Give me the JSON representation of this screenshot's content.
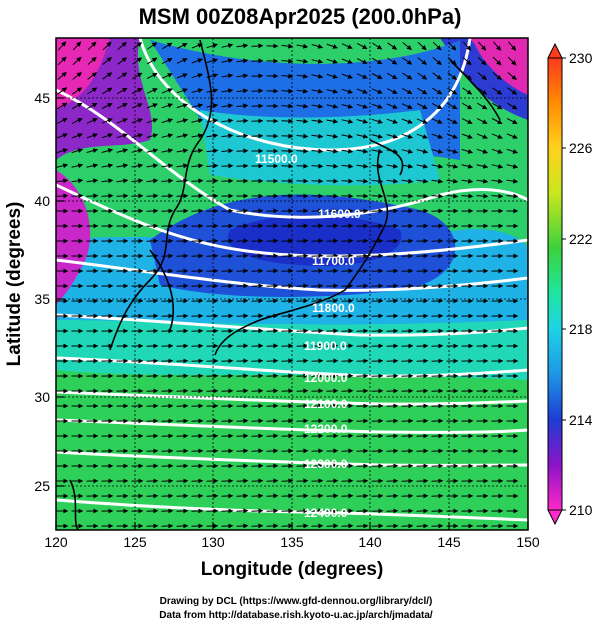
{
  "title": "MSM 00Z08Apr2025 (200.0hPa)",
  "xlabel": "Longitude (degrees)",
  "ylabel": "Latitude  (degrees)",
  "x_ticks": [
    "120",
    "125",
    "130",
    "135",
    "140",
    "145",
    "150"
  ],
  "y_ticks": [
    "25",
    "30",
    "35",
    "40",
    "45"
  ],
  "colorbar": {
    "ticks": [
      "230",
      "226",
      "222",
      "218",
      "214",
      "210"
    ],
    "min": 210,
    "max": 230
  },
  "contour_labels": [
    "11500.0",
    "11600.0",
    "11700.0",
    "11800.0",
    "11900.0",
    "12000.0",
    "12100.0",
    "12200.0",
    "12300.0",
    "12400.0"
  ],
  "credits": {
    "line1": "Drawing by DCL (https://www.gfd-dennou.org/library/dcl/)",
    "line2": "Data from http://database.rish.kyoto-u.ac.jp/arch/jmadata/"
  },
  "map_data": {
    "extent": {
      "lon": [
        120,
        150
      ],
      "lat": [
        22.5,
        48
      ]
    },
    "field": "temperature (K)",
    "contour_field": "geopotential height (m)",
    "vectors": "wind"
  }
}
